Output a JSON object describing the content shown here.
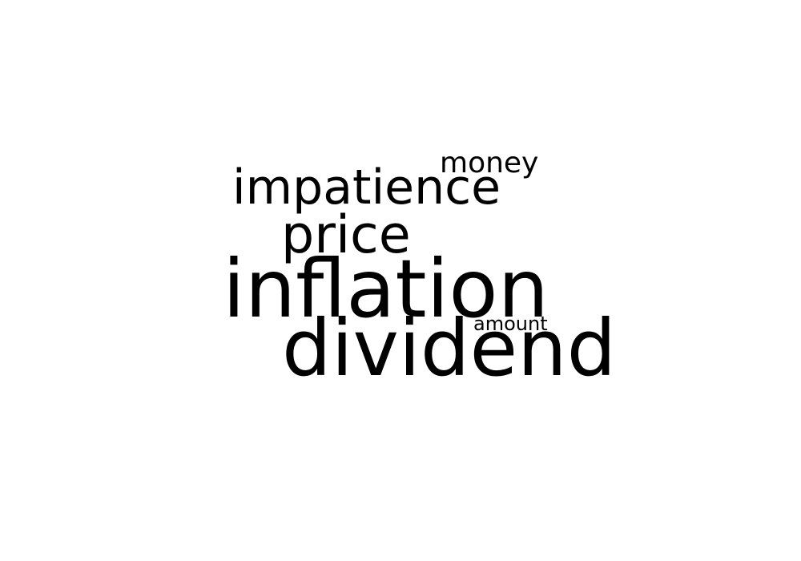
{
  "word_cloud": {
    "text_color": "#000000",
    "background_color": "#ffffff",
    "words": [
      {
        "text": "inflation"
      },
      {
        "text": "dividend"
      },
      {
        "text": "price"
      },
      {
        "text": "impatience"
      },
      {
        "text": "money"
      },
      {
        "text": "amount"
      }
    ]
  }
}
